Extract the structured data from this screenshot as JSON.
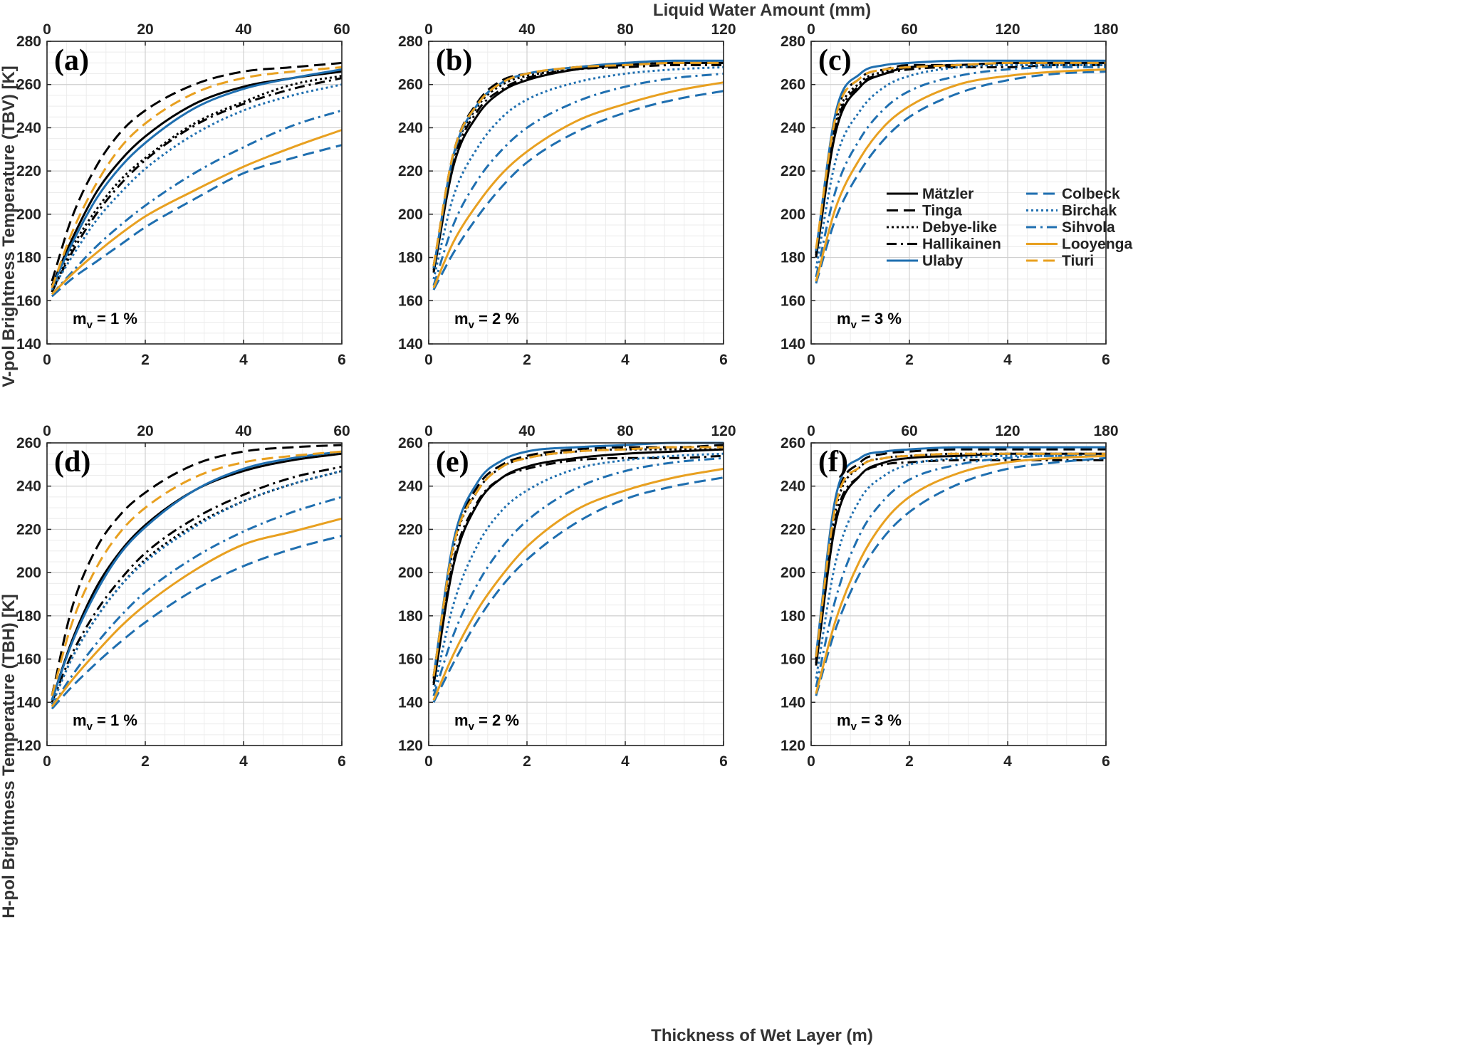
{
  "figure": {
    "top_axis_title": "Liquid Water Amount (mm)",
    "bottom_axis_title": "Thickness of Wet Layer (m)",
    "ylabel_top": "V-pol Brightness Temperature (TBV) [K]",
    "ylabel_bottom": "H-pol Brightness Temperature (TBH) [K]"
  },
  "styles": {
    "Mätzler": {
      "color": "#000000",
      "dash": "solid"
    },
    "Tinga": {
      "color": "#000000",
      "dash": "dash"
    },
    "Debye-like": {
      "color": "#000000",
      "dash": "dot"
    },
    "Hallikainen": {
      "color": "#000000",
      "dash": "dashdot"
    },
    "Ulaby": {
      "color": "#1f6fb0",
      "dash": "solid"
    },
    "Colbeck": {
      "color": "#1f6fb0",
      "dash": "dash"
    },
    "Birchak": {
      "color": "#1f6fb0",
      "dash": "dot"
    },
    "Sihvola": {
      "color": "#1f6fb0",
      "dash": "dashdot"
    },
    "Looyenga": {
      "color": "#e8a020",
      "dash": "solid"
    },
    "Tiuri": {
      "color": "#e8a020",
      "dash": "dash"
    }
  },
  "legend": {
    "panel": "c",
    "items": [
      "Mätzler",
      "Tinga",
      "Debye-like",
      "Hallikainen",
      "Ulaby",
      "Colbeck",
      "Birchak",
      "Sihvola",
      "Looyenga",
      "Tiuri"
    ]
  },
  "chart_data": [
    {
      "type": "line",
      "panel": "a",
      "label": "(a)",
      "mv_base": "m",
      "mv_sub": "v",
      "mv_rest": " = 1 %",
      "x": [
        0.1,
        0.5,
        1,
        1.5,
        2,
        3,
        4,
        5,
        6
      ],
      "xlim": [
        0,
        6
      ],
      "xticks": [
        "0",
        "2",
        "4",
        "6"
      ],
      "top_xlim": [
        0,
        60
      ],
      "top_xticks": [
        "0",
        "20",
        "40",
        "60"
      ],
      "ylim": [
        140,
        280
      ],
      "yticks": [
        "140",
        "160",
        "180",
        "200",
        "220",
        "240",
        "260",
        "280"
      ],
      "series": [
        {
          "name": "Mätzler",
          "values": [
            167,
            188,
            210,
            225,
            236,
            251,
            259,
            263,
            266
          ]
        },
        {
          "name": "Tinga",
          "values": [
            169,
            198,
            222,
            238,
            248,
            260,
            266,
            268,
            270
          ]
        },
        {
          "name": "Debye-like",
          "values": [
            164,
            184,
            202,
            216,
            226,
            242,
            252,
            260,
            264
          ]
        },
        {
          "name": "Hallikainen",
          "values": [
            164,
            182,
            200,
            214,
            225,
            241,
            251,
            258,
            263
          ]
        },
        {
          "name": "Ulaby",
          "values": [
            166,
            186,
            207,
            222,
            233,
            249,
            258,
            263,
            267
          ]
        },
        {
          "name": "Colbeck",
          "values": [
            162,
            170,
            178,
            186,
            194,
            207,
            219,
            226,
            232
          ]
        },
        {
          "name": "Birchak",
          "values": [
            165,
            180,
            197,
            210,
            221,
            237,
            248,
            255,
            260
          ]
        },
        {
          "name": "Sihvola",
          "values": [
            163,
            173,
            185,
            195,
            204,
            219,
            231,
            241,
            248
          ]
        },
        {
          "name": "Looyenga",
          "values": [
            163,
            172,
            182,
            191,
            199,
            211,
            222,
            231,
            239
          ]
        },
        {
          "name": "Tiuri",
          "values": [
            166,
            191,
            214,
            231,
            242,
            256,
            263,
            266,
            268
          ]
        }
      ]
    },
    {
      "type": "line",
      "panel": "b",
      "label": "(b)",
      "mv_base": "m",
      "mv_sub": "v",
      "mv_rest": " = 2 %",
      "x": [
        0.1,
        0.5,
        1,
        1.5,
        2,
        3,
        4,
        5,
        6
      ],
      "xlim": [
        0,
        6
      ],
      "xticks": [
        "0",
        "2",
        "4",
        "6"
      ],
      "top_xlim": [
        0,
        120
      ],
      "top_xticks": [
        "0",
        "40",
        "80",
        "120"
      ],
      "ylim": [
        140,
        280
      ],
      "yticks": [
        "140",
        "160",
        "180",
        "200",
        "220",
        "240",
        "260",
        "280"
      ],
      "series": [
        {
          "name": "Mätzler",
          "values": [
            173,
            222,
            246,
            257,
            262,
            267,
            269,
            270,
            270
          ]
        },
        {
          "name": "Tinga",
          "values": [
            176,
            228,
            252,
            262,
            265,
            268,
            269,
            270,
            270
          ]
        },
        {
          "name": "Debye-like",
          "values": [
            175,
            226,
            250,
            260,
            264,
            267,
            269,
            270,
            270
          ]
        },
        {
          "name": "Hallikainen",
          "values": [
            174,
            224,
            248,
            258,
            263,
            267,
            268,
            269,
            269
          ]
        },
        {
          "name": "Ulaby",
          "values": [
            175,
            227,
            251,
            261,
            265,
            268,
            270,
            271,
            271
          ]
        },
        {
          "name": "Colbeck",
          "values": [
            165,
            182,
            199,
            213,
            224,
            238,
            247,
            253,
            257
          ]
        },
        {
          "name": "Birchak",
          "values": [
            170,
            208,
            231,
            245,
            253,
            261,
            265,
            267,
            268
          ]
        },
        {
          "name": "Sihvola",
          "values": [
            167,
            195,
            216,
            230,
            240,
            252,
            259,
            263,
            265
          ]
        },
        {
          "name": "Looyenga",
          "values": [
            166,
            187,
            205,
            219,
            229,
            243,
            251,
            257,
            261
          ]
        },
        {
          "name": "Tiuri",
          "values": [
            176,
            228,
            251,
            261,
            265,
            268,
            269,
            270,
            270
          ]
        }
      ]
    },
    {
      "type": "line",
      "panel": "c",
      "label": "(c)",
      "mv_base": "m",
      "mv_sub": "v",
      "mv_rest": " = 3 %",
      "x": [
        0.1,
        0.5,
        1,
        1.5,
        2,
        3,
        4,
        5,
        6
      ],
      "xlim": [
        0,
        6
      ],
      "xticks": [
        "0",
        "2",
        "4",
        "6"
      ],
      "top_xlim": [
        0,
        180
      ],
      "top_xticks": [
        "0",
        "60",
        "120",
        "180"
      ],
      "ylim": [
        140,
        280
      ],
      "yticks": [
        "140",
        "160",
        "180",
        "200",
        "220",
        "240",
        "260",
        "280"
      ],
      "series": [
        {
          "name": "Mätzler",
          "values": [
            180,
            238,
            259,
            265,
            268,
            269,
            270,
            270,
            270
          ]
        },
        {
          "name": "Tinga",
          "values": [
            183,
            245,
            263,
            267,
            269,
            269,
            270,
            270,
            270
          ]
        },
        {
          "name": "Debye-like",
          "values": [
            182,
            242,
            261,
            266,
            268,
            269,
            269,
            269,
            269
          ]
        },
        {
          "name": "Hallikainen",
          "values": [
            181,
            240,
            260,
            265,
            267,
            268,
            268,
            269,
            269
          ]
        },
        {
          "name": "Ulaby",
          "values": [
            183,
            247,
            265,
            269,
            270,
            271,
            271,
            271,
            271
          ]
        },
        {
          "name": "Colbeck",
          "values": [
            168,
            198,
            220,
            235,
            245,
            256,
            262,
            265,
            266
          ]
        },
        {
          "name": "Birchak",
          "values": [
            175,
            225,
            248,
            259,
            264,
            268,
            269,
            269,
            269
          ]
        },
        {
          "name": "Sihvola",
          "values": [
            171,
            211,
            235,
            249,
            257,
            264,
            267,
            268,
            268
          ]
        },
        {
          "name": "Looyenga",
          "values": [
            169,
            203,
            226,
            241,
            250,
            260,
            264,
            266,
            267
          ]
        },
        {
          "name": "Tiuri",
          "values": [
            184,
            245,
            263,
            267,
            268,
            269,
            270,
            270,
            270
          ]
        }
      ]
    },
    {
      "type": "line",
      "panel": "d",
      "label": "(d)",
      "mv_base": "m",
      "mv_sub": "v",
      "mv_rest": " = 1 %",
      "x": [
        0.1,
        0.5,
        1,
        1.5,
        2,
        3,
        4,
        5,
        6
      ],
      "xlim": [
        0,
        6
      ],
      "xticks": [
        "0",
        "2",
        "4",
        "6"
      ],
      "top_xlim": [
        0,
        60
      ],
      "top_xticks": [
        "0",
        "20",
        "40",
        "60"
      ],
      "ylim": [
        120,
        260
      ],
      "yticks": [
        "120",
        "140",
        "160",
        "180",
        "200",
        "220",
        "240",
        "260"
      ],
      "series": [
        {
          "name": "Mätzler",
          "values": [
            141,
            168,
            193,
            210,
            222,
            238,
            247,
            252,
            255
          ]
        },
        {
          "name": "Tinga",
          "values": [
            143,
            183,
            211,
            227,
            237,
            250,
            256,
            258,
            259
          ]
        },
        {
          "name": "Debye-like",
          "values": [
            139,
            160,
            179,
            194,
            206,
            222,
            233,
            241,
            247
          ]
        },
        {
          "name": "Hallikainen",
          "values": [
            140,
            162,
            182,
            197,
            209,
            225,
            236,
            244,
            249
          ]
        },
        {
          "name": "Ulaby",
          "values": [
            141,
            167,
            191,
            209,
            221,
            238,
            248,
            253,
            256
          ]
        },
        {
          "name": "Colbeck",
          "values": [
            137,
            147,
            158,
            168,
            177,
            192,
            203,
            211,
            217
          ]
        },
        {
          "name": "Birchak",
          "values": [
            139,
            160,
            179,
            194,
            205,
            221,
            233,
            241,
            247
          ]
        },
        {
          "name": "Sihvola",
          "values": [
            138,
            152,
            167,
            180,
            191,
            207,
            219,
            228,
            235
          ]
        },
        {
          "name": "Looyenga",
          "values": [
            138,
            150,
            163,
            175,
            185,
            201,
            213,
            219,
            225
          ]
        },
        {
          "name": "Tiuri",
          "values": [
            143,
            176,
            202,
            219,
            230,
            244,
            251,
            254,
            256
          ]
        }
      ]
    },
    {
      "type": "line",
      "panel": "e",
      "label": "(e)",
      "mv_base": "m",
      "mv_sub": "v",
      "mv_rest": " = 2 %",
      "x": [
        0.1,
        0.5,
        1,
        1.5,
        2,
        3,
        4,
        5,
        6
      ],
      "xlim": [
        0,
        6
      ],
      "xticks": [
        "0",
        "2",
        "4",
        "6"
      ],
      "top_xlim": [
        0,
        120
      ],
      "top_xticks": [
        "0",
        "40",
        "80",
        "120"
      ],
      "ylim": [
        120,
        260
      ],
      "yticks": [
        "120",
        "140",
        "160",
        "180",
        "200",
        "220",
        "240",
        "260"
      ],
      "series": [
        {
          "name": "Mätzler",
          "values": [
            148,
            203,
            232,
            244,
            249,
            253,
            255,
            256,
            257
          ]
        },
        {
          "name": "Tinga",
          "values": [
            152,
            213,
            240,
            250,
            254,
            257,
            258,
            258,
            259
          ]
        },
        {
          "name": "Debye-like",
          "values": [
            151,
            211,
            238,
            249,
            253,
            256,
            257,
            257,
            257
          ]
        },
        {
          "name": "Hallikainen",
          "values": [
            149,
            205,
            233,
            244,
            248,
            252,
            253,
            253,
            254
          ]
        },
        {
          "name": "Ulaby",
          "values": [
            152,
            214,
            242,
            252,
            256,
            258,
            259,
            260,
            260
          ]
        },
        {
          "name": "Colbeck",
          "values": [
            140,
            158,
            178,
            194,
            206,
            223,
            234,
            240,
            244
          ]
        },
        {
          "name": "Birchak",
          "values": [
            145,
            185,
            213,
            229,
            238,
            248,
            252,
            254,
            255
          ]
        },
        {
          "name": "Sihvola",
          "values": [
            143,
            171,
            195,
            212,
            224,
            239,
            247,
            251,
            253
          ]
        },
        {
          "name": "Looyenga",
          "values": [
            141,
            162,
            183,
            199,
            212,
            229,
            238,
            244,
            248
          ]
        },
        {
          "name": "Tiuri",
          "values": [
            152,
            212,
            238,
            249,
            253,
            256,
            257,
            258,
            258
          ]
        }
      ]
    },
    {
      "type": "line",
      "panel": "f",
      "label": "(f)",
      "mv_base": "m",
      "mv_sub": "v",
      "mv_rest": " = 3 %",
      "x": [
        0.1,
        0.5,
        1,
        1.5,
        2,
        3,
        4,
        5,
        6
      ],
      "xlim": [
        0,
        6
      ],
      "xticks": [
        "0",
        "2",
        "4",
        "6"
      ],
      "top_xlim": [
        0,
        180
      ],
      "top_xticks": [
        "0",
        "60",
        "120",
        "180"
      ],
      "ylim": [
        120,
        260
      ],
      "yticks": [
        "120",
        "140",
        "160",
        "180",
        "200",
        "220",
        "240",
        "260"
      ],
      "series": [
        {
          "name": "Mätzler",
          "values": [
            157,
            223,
            245,
            251,
            253,
            254,
            255,
            255,
            255
          ]
        },
        {
          "name": "Tinga",
          "values": [
            161,
            232,
            251,
            255,
            256,
            257,
            257,
            257,
            257
          ]
        },
        {
          "name": "Debye-like",
          "values": [
            160,
            229,
            249,
            253,
            254,
            255,
            255,
            255,
            255
          ]
        },
        {
          "name": "Hallikainen",
          "values": [
            158,
            225,
            245,
            250,
            251,
            252,
            252,
            252,
            252
          ]
        },
        {
          "name": "Ulaby",
          "values": [
            162,
            235,
            253,
            256,
            257,
            258,
            258,
            258,
            258
          ]
        },
        {
          "name": "Colbeck",
          "values": [
            143,
            174,
            200,
            217,
            228,
            241,
            248,
            251,
            253
          ]
        },
        {
          "name": "Birchak",
          "values": [
            151,
            205,
            234,
            245,
            250,
            253,
            254,
            254,
            254
          ]
        },
        {
          "name": "Sihvola",
          "values": [
            147,
            188,
            218,
            234,
            243,
            250,
            253,
            254,
            254
          ]
        },
        {
          "name": "Looyenga",
          "values": [
            144,
            178,
            206,
            224,
            235,
            246,
            251,
            253,
            254
          ]
        },
        {
          "name": "Tiuri",
          "values": [
            161,
            231,
            249,
            253,
            254,
            255,
            255,
            255,
            255
          ]
        }
      ]
    }
  ]
}
